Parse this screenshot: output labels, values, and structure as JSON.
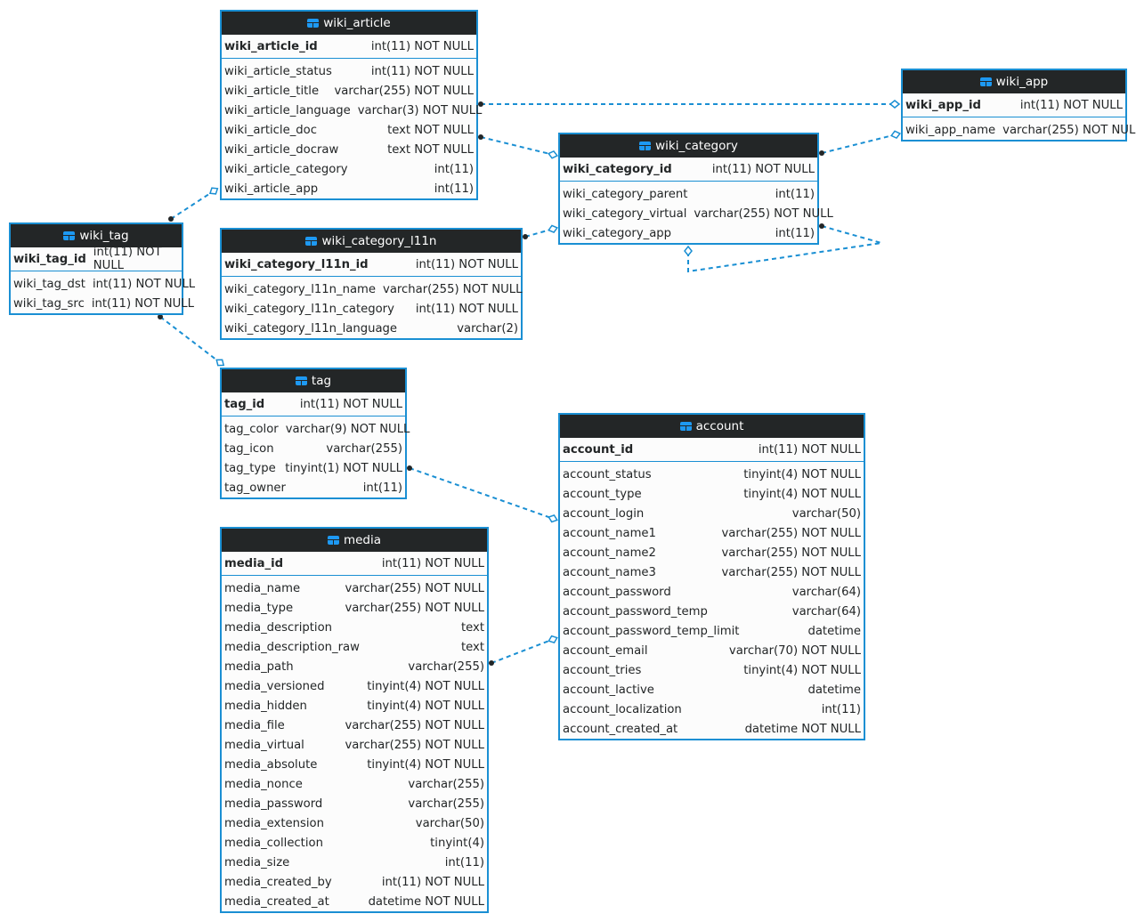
{
  "diagram_colors": {
    "edge": "#1a8fd3",
    "header": "#232627",
    "border": "#1a8fd3"
  },
  "tables": [
    {
      "name": "wiki_article",
      "pk": {
        "name": "wiki_article_id",
        "type": "int(11) NOT NULL"
      },
      "columns": [
        {
          "name": "wiki_article_status",
          "type": "int(11) NOT NULL"
        },
        {
          "name": "wiki_article_title",
          "type": "varchar(255) NOT NULL"
        },
        {
          "name": "wiki_article_language",
          "type": "varchar(3) NOT NULL"
        },
        {
          "name": "wiki_article_doc",
          "type": "text NOT NULL"
        },
        {
          "name": "wiki_article_docraw",
          "type": "text NOT NULL"
        },
        {
          "name": "wiki_article_category",
          "type": "int(11)"
        },
        {
          "name": "wiki_article_app",
          "type": "int(11)"
        }
      ]
    },
    {
      "name": "wiki_app",
      "pk": {
        "name": "wiki_app_id",
        "type": "int(11) NOT NULL"
      },
      "columns": [
        {
          "name": "wiki_app_name",
          "type": "varchar(255) NOT NULL"
        }
      ]
    },
    {
      "name": "wiki_category",
      "pk": {
        "name": "wiki_category_id",
        "type": "int(11) NOT NULL"
      },
      "columns": [
        {
          "name": "wiki_category_parent",
          "type": "int(11)"
        },
        {
          "name": "wiki_category_virtual",
          "type": "varchar(255) NOT NULL"
        },
        {
          "name": "wiki_category_app",
          "type": "int(11)"
        }
      ]
    },
    {
      "name": "wiki_tag",
      "pk": {
        "name": "wiki_tag_id",
        "type": "int(11) NOT NULL"
      },
      "columns": [
        {
          "name": "wiki_tag_dst",
          "type": "int(11) NOT NULL"
        },
        {
          "name": "wiki_tag_src",
          "type": "int(11) NOT NULL"
        }
      ]
    },
    {
      "name": "wiki_category_l11n",
      "pk": {
        "name": "wiki_category_l11n_id",
        "type": "int(11) NOT NULL"
      },
      "columns": [
        {
          "name": "wiki_category_l11n_name",
          "type": "varchar(255) NOT NULL"
        },
        {
          "name": "wiki_category_l11n_category",
          "type": "int(11) NOT NULL"
        },
        {
          "name": "wiki_category_l11n_language",
          "type": "varchar(2)"
        }
      ]
    },
    {
      "name": "tag",
      "pk": {
        "name": "tag_id",
        "type": "int(11) NOT NULL"
      },
      "columns": [
        {
          "name": "tag_color",
          "type": "varchar(9) NOT NULL"
        },
        {
          "name": "tag_icon",
          "type": "varchar(255)"
        },
        {
          "name": "tag_type",
          "type": "tinyint(1) NOT NULL"
        },
        {
          "name": "tag_owner",
          "type": "int(11)"
        }
      ]
    },
    {
      "name": "account",
      "pk": {
        "name": "account_id",
        "type": "int(11) NOT NULL"
      },
      "columns": [
        {
          "name": "account_status",
          "type": "tinyint(4) NOT NULL"
        },
        {
          "name": "account_type",
          "type": "tinyint(4) NOT NULL"
        },
        {
          "name": "account_login",
          "type": "varchar(50)"
        },
        {
          "name": "account_name1",
          "type": "varchar(255) NOT NULL"
        },
        {
          "name": "account_name2",
          "type": "varchar(255) NOT NULL"
        },
        {
          "name": "account_name3",
          "type": "varchar(255) NOT NULL"
        },
        {
          "name": "account_password",
          "type": "varchar(64)"
        },
        {
          "name": "account_password_temp",
          "type": "varchar(64)"
        },
        {
          "name": "account_password_temp_limit",
          "type": "datetime"
        },
        {
          "name": "account_email",
          "type": "varchar(70) NOT NULL"
        },
        {
          "name": "account_tries",
          "type": "tinyint(4) NOT NULL"
        },
        {
          "name": "account_lactive",
          "type": "datetime"
        },
        {
          "name": "account_localization",
          "type": "int(11)"
        },
        {
          "name": "account_created_at",
          "type": "datetime NOT NULL"
        }
      ]
    },
    {
      "name": "media",
      "pk": {
        "name": "media_id",
        "type": "int(11) NOT NULL"
      },
      "columns": [
        {
          "name": "media_name",
          "type": "varchar(255) NOT NULL"
        },
        {
          "name": "media_type",
          "type": "varchar(255) NOT NULL"
        },
        {
          "name": "media_description",
          "type": "text"
        },
        {
          "name": "media_description_raw",
          "type": "text"
        },
        {
          "name": "media_path",
          "type": "varchar(255)"
        },
        {
          "name": "media_versioned",
          "type": "tinyint(4) NOT NULL"
        },
        {
          "name": "media_hidden",
          "type": "tinyint(4) NOT NULL"
        },
        {
          "name": "media_file",
          "type": "varchar(255) NOT NULL"
        },
        {
          "name": "media_virtual",
          "type": "varchar(255) NOT NULL"
        },
        {
          "name": "media_absolute",
          "type": "tinyint(4) NOT NULL"
        },
        {
          "name": "media_nonce",
          "type": "varchar(255)"
        },
        {
          "name": "media_password",
          "type": "varchar(255)"
        },
        {
          "name": "media_extension",
          "type": "varchar(50)"
        },
        {
          "name": "media_collection",
          "type": "tinyint(4)"
        },
        {
          "name": "media_size",
          "type": "int(11)"
        },
        {
          "name": "media_created_by",
          "type": "int(11) NOT NULL"
        },
        {
          "name": "media_created_at",
          "type": "datetime NOT NULL"
        }
      ]
    }
  ],
  "relations": [
    {
      "from": "wiki_article",
      "to": "wiki_app"
    },
    {
      "from": "wiki_article",
      "to": "wiki_category"
    },
    {
      "from": "wiki_tag",
      "to": "wiki_article"
    },
    {
      "from": "wiki_category",
      "to": "wiki_app"
    },
    {
      "from": "wiki_category_l11n",
      "to": "wiki_category"
    },
    {
      "from": "wiki_category",
      "to": "wiki_category"
    },
    {
      "from": "wiki_tag",
      "to": "tag"
    },
    {
      "from": "tag",
      "to": "account"
    },
    {
      "from": "media",
      "to": "account"
    }
  ]
}
